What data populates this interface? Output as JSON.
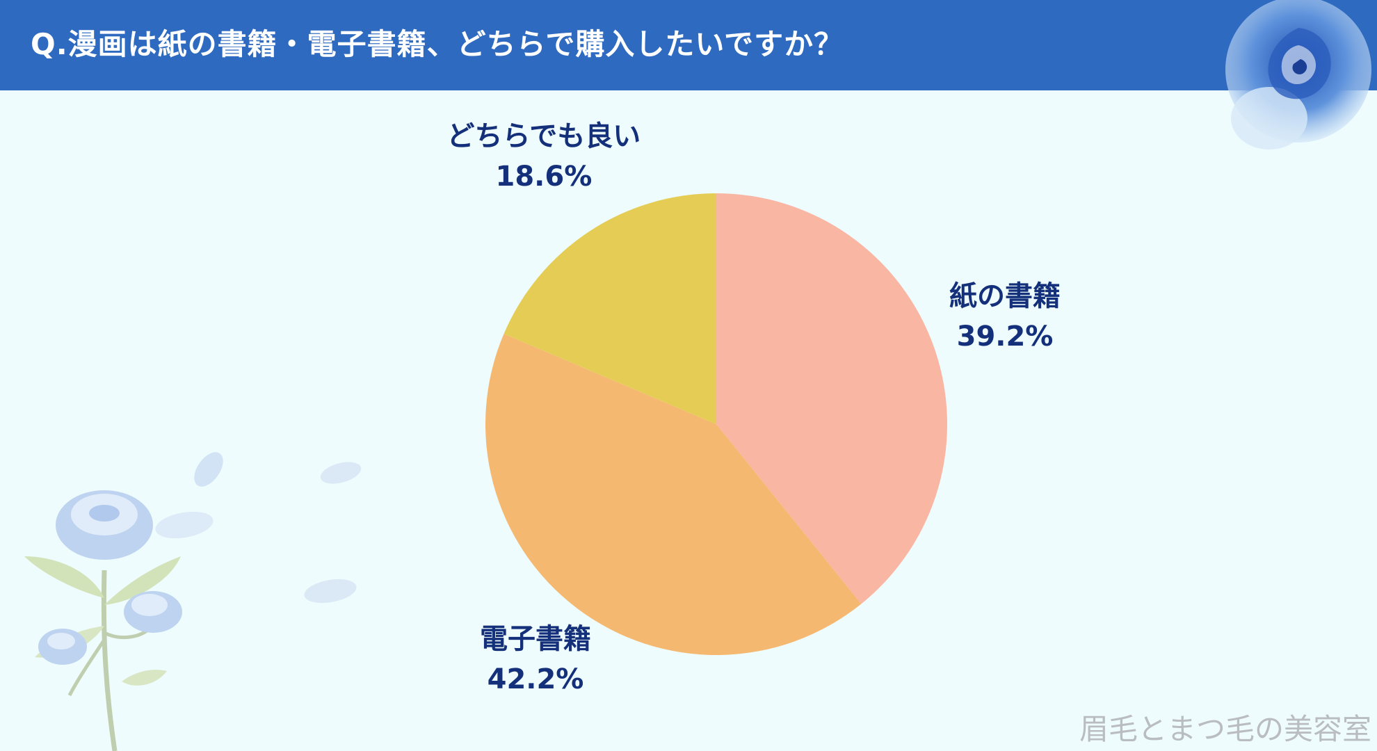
{
  "header": {
    "title": "Q.漫画は紙の書籍・電子書籍、どちらで購入したいですか？",
    "color": "#2e6ac0"
  },
  "chart_data": {
    "type": "pie",
    "title": "Q.漫画は紙の書籍・電子書籍、どちらで購入したいですか？",
    "slices": [
      {
        "label": "紙の書籍",
        "value": 39.2,
        "display": "39.2%",
        "color": "#f8b6a3"
      },
      {
        "label": "電子書籍",
        "value": 42.2,
        "display": "42.2%",
        "color": "#f5b870"
      },
      {
        "label": "どちらでも良い",
        "value": 18.6,
        "display": "18.6%",
        "color": "#e5cd55"
      }
    ],
    "start_angle": "12 o'clock",
    "direction": "clockwise"
  },
  "watermark": "眉毛とまつ毛の美容室",
  "decorations": [
    "blue-rose-icon",
    "rose-stem-icon",
    "petal-icon"
  ]
}
